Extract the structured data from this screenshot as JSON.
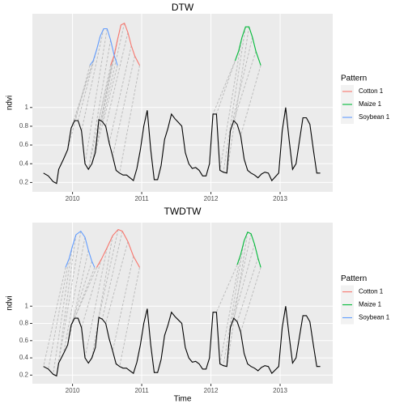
{
  "chart_data": [
    {
      "type": "line",
      "title": "DTW",
      "y_label": "ndvi",
      "xlim": [
        2009.42,
        2013.76
      ],
      "xticks": [
        2010,
        2011,
        2012,
        2013
      ],
      "ylim": [
        0.1,
        2.0
      ],
      "yticks": [
        0.2,
        0.4,
        0.6,
        0.8,
        1
      ],
      "grid": true,
      "line_color": "#000000",
      "legend_title": "Pattern",
      "legend_position": "right",
      "x": [
        2009.58,
        2009.65,
        2009.72,
        2009.77,
        2009.8,
        2009.87,
        2009.93,
        2009.98,
        2010.03,
        2010.08,
        2010.13,
        2010.18,
        2010.23,
        2010.28,
        2010.33,
        2010.38,
        2010.43,
        2010.48,
        2010.53,
        2010.58,
        2010.63,
        2010.68,
        2010.73,
        2010.78,
        2010.83,
        2010.88,
        2010.93,
        2010.98,
        2011.03,
        2011.08,
        2011.13,
        2011.18,
        2011.23,
        2011.28,
        2011.33,
        2011.38,
        2011.43,
        2011.48,
        2011.53,
        2011.58,
        2011.63,
        2011.68,
        2011.73,
        2011.78,
        2011.83,
        2011.88,
        2011.93,
        2011.98,
        2012.03,
        2012.08,
        2012.13,
        2012.18,
        2012.23,
        2012.28,
        2012.33,
        2012.38,
        2012.43,
        2012.48,
        2012.53,
        2012.58,
        2012.63,
        2012.68,
        2012.73,
        2012.78,
        2012.83,
        2012.88,
        2012.93,
        2012.98,
        2013.03,
        2013.08,
        2013.13,
        2013.18,
        2013.23,
        2013.28,
        2013.33,
        2013.38,
        2013.43,
        2013.48,
        2013.53,
        2013.58
      ],
      "values": [
        0.3,
        0.27,
        0.21,
        0.19,
        0.34,
        0.45,
        0.55,
        0.78,
        0.86,
        0.86,
        0.75,
        0.4,
        0.34,
        0.4,
        0.52,
        0.87,
        0.85,
        0.8,
        0.62,
        0.48,
        0.33,
        0.3,
        0.28,
        0.28,
        0.25,
        0.22,
        0.35,
        0.55,
        0.8,
        0.97,
        0.55,
        0.23,
        0.23,
        0.38,
        0.66,
        0.78,
        0.93,
        0.88,
        0.84,
        0.8,
        0.52,
        0.4,
        0.35,
        0.36,
        0.33,
        0.27,
        0.27,
        0.4,
        0.93,
        0.93,
        0.33,
        0.31,
        0.3,
        0.75,
        0.86,
        0.82,
        0.7,
        0.45,
        0.33,
        0.3,
        0.28,
        0.25,
        0.29,
        0.31,
        0.3,
        0.22,
        0.26,
        0.3,
        0.75,
        1.0,
        0.66,
        0.34,
        0.4,
        0.65,
        0.89,
        0.89,
        0.82,
        0.55,
        0.3,
        0.3
      ],
      "series": [
        {
          "name": "Cotton 1",
          "color": "#F8766D",
          "x": [
            2010.55,
            2010.6,
            2010.65,
            2010.7,
            2010.75,
            2010.8,
            2010.85,
            2010.9,
            2010.97
          ],
          "values": [
            1.45,
            1.55,
            1.72,
            1.88,
            1.9,
            1.8,
            1.66,
            1.55,
            1.45
          ]
        },
        {
          "name": "Maize 1",
          "color": "#00BA38",
          "x": [
            2012.35,
            2012.4,
            2012.45,
            2012.5,
            2012.55,
            2012.6,
            2012.65,
            2012.72
          ],
          "values": [
            1.5,
            1.6,
            1.75,
            1.86,
            1.86,
            1.75,
            1.6,
            1.45
          ]
        },
        {
          "name": "Soybean 1",
          "color": "#619CFF",
          "x": [
            2010.25,
            2010.3,
            2010.35,
            2010.4,
            2010.45,
            2010.5,
            2010.55,
            2010.6,
            2010.65
          ],
          "values": [
            1.45,
            1.5,
            1.62,
            1.76,
            1.84,
            1.84,
            1.72,
            1.56,
            1.45
          ]
        }
      ]
    },
    {
      "type": "line",
      "title": "TWDTW",
      "y_label": "ndvi",
      "x_label": "Time",
      "xlim": [
        2009.42,
        2013.76
      ],
      "xticks": [
        2010,
        2011,
        2012,
        2013
      ],
      "ylim": [
        0.1,
        1.97
      ],
      "yticks": [
        0.2,
        0.4,
        0.6,
        0.8,
        1
      ],
      "grid": true,
      "line_color": "#000000",
      "legend_title": "Pattern",
      "legend_position": "right",
      "x": [
        2009.58,
        2009.65,
        2009.72,
        2009.77,
        2009.8,
        2009.87,
        2009.93,
        2009.98,
        2010.03,
        2010.08,
        2010.13,
        2010.18,
        2010.23,
        2010.28,
        2010.33,
        2010.38,
        2010.43,
        2010.48,
        2010.53,
        2010.58,
        2010.63,
        2010.68,
        2010.73,
        2010.78,
        2010.83,
        2010.88,
        2010.93,
        2010.98,
        2011.03,
        2011.08,
        2011.13,
        2011.18,
        2011.23,
        2011.28,
        2011.33,
        2011.38,
        2011.43,
        2011.48,
        2011.53,
        2011.58,
        2011.63,
        2011.68,
        2011.73,
        2011.78,
        2011.83,
        2011.88,
        2011.93,
        2011.98,
        2012.03,
        2012.08,
        2012.13,
        2012.18,
        2012.23,
        2012.28,
        2012.33,
        2012.38,
        2012.43,
        2012.48,
        2012.53,
        2012.58,
        2012.63,
        2012.68,
        2012.73,
        2012.78,
        2012.83,
        2012.88,
        2012.93,
        2012.98,
        2013.03,
        2013.08,
        2013.13,
        2013.18,
        2013.23,
        2013.28,
        2013.33,
        2013.38,
        2013.43,
        2013.48,
        2013.53,
        2013.58
      ],
      "values": [
        0.3,
        0.27,
        0.21,
        0.19,
        0.34,
        0.45,
        0.55,
        0.78,
        0.86,
        0.86,
        0.75,
        0.4,
        0.34,
        0.4,
        0.52,
        0.87,
        0.85,
        0.8,
        0.62,
        0.48,
        0.33,
        0.3,
        0.28,
        0.28,
        0.25,
        0.22,
        0.35,
        0.55,
        0.8,
        0.97,
        0.55,
        0.23,
        0.23,
        0.38,
        0.66,
        0.78,
        0.93,
        0.88,
        0.84,
        0.8,
        0.52,
        0.4,
        0.35,
        0.36,
        0.33,
        0.27,
        0.27,
        0.4,
        0.93,
        0.93,
        0.33,
        0.31,
        0.3,
        0.75,
        0.86,
        0.82,
        0.7,
        0.45,
        0.33,
        0.3,
        0.28,
        0.25,
        0.29,
        0.31,
        0.3,
        0.22,
        0.26,
        0.3,
        0.75,
        1.0,
        0.66,
        0.34,
        0.4,
        0.65,
        0.89,
        0.89,
        0.82,
        0.55,
        0.3,
        0.3
      ],
      "series": [
        {
          "name": "Cotton 1",
          "color": "#F8766D",
          "x": [
            2010.35,
            2010.42,
            2010.5,
            2010.58,
            2010.66,
            2010.72,
            2010.8,
            2010.88,
            2010.97
          ],
          "values": [
            1.45,
            1.55,
            1.68,
            1.82,
            1.89,
            1.87,
            1.75,
            1.58,
            1.45
          ]
        },
        {
          "name": "Maize 1",
          "color": "#00BA38",
          "x": [
            2012.38,
            2012.43,
            2012.48,
            2012.53,
            2012.58,
            2012.63,
            2012.68,
            2012.72
          ],
          "values": [
            1.48,
            1.6,
            1.76,
            1.86,
            1.84,
            1.72,
            1.56,
            1.45
          ]
        },
        {
          "name": "Soybean 1",
          "color": "#619CFF",
          "x": [
            2009.9,
            2009.95,
            2010.0,
            2010.05,
            2010.12,
            2010.18,
            2010.23,
            2010.28,
            2010.32
          ],
          "values": [
            1.45,
            1.55,
            1.7,
            1.83,
            1.87,
            1.8,
            1.65,
            1.52,
            1.45
          ]
        }
      ]
    }
  ]
}
